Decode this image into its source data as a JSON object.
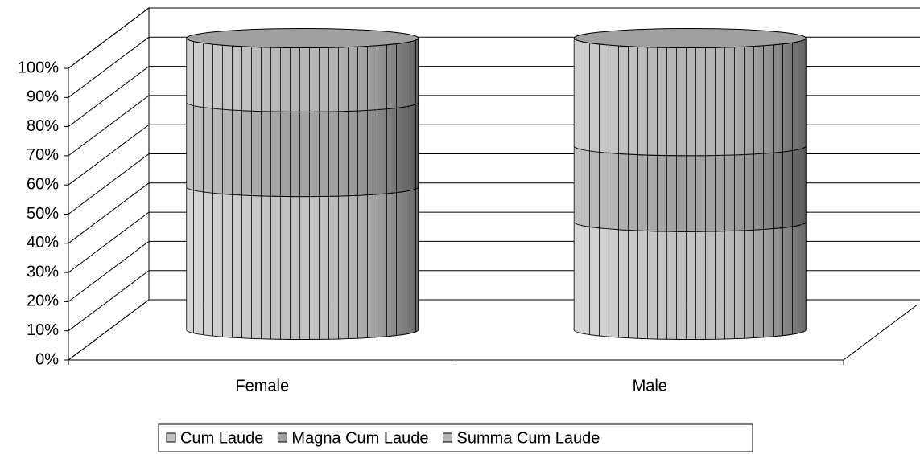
{
  "chart_data": {
    "type": "cylinder-stacked-100",
    "categories": [
      "Female",
      "Male"
    ],
    "series": [
      {
        "name": "Cum Laude",
        "color": "#c0c0c0",
        "values": [
          49,
          37
        ]
      },
      {
        "name": "Magna Cum Laude",
        "color": "#a0a0a0",
        "values": [
          29,
          26
        ]
      },
      {
        "name": "Summa Cum Laude",
        "color": "#b4b4b4",
        "values": [
          22,
          37
        ]
      }
    ],
    "ylim": [
      0,
      100
    ],
    "yticks": [
      {
        "value": 0,
        "label": "0%"
      },
      {
        "value": 10,
        "label": "10%"
      },
      {
        "value": 20,
        "label": "20%"
      },
      {
        "value": 30,
        "label": "30%"
      },
      {
        "value": 40,
        "label": "40%"
      },
      {
        "value": 50,
        "label": "50%"
      },
      {
        "value": 60,
        "label": "60%"
      },
      {
        "value": 70,
        "label": "70%"
      },
      {
        "value": 80,
        "label": "80%"
      },
      {
        "value": 90,
        "label": "90%"
      },
      {
        "value": 100,
        "label": "100%"
      }
    ],
    "grid": true,
    "legend": "bottom"
  }
}
